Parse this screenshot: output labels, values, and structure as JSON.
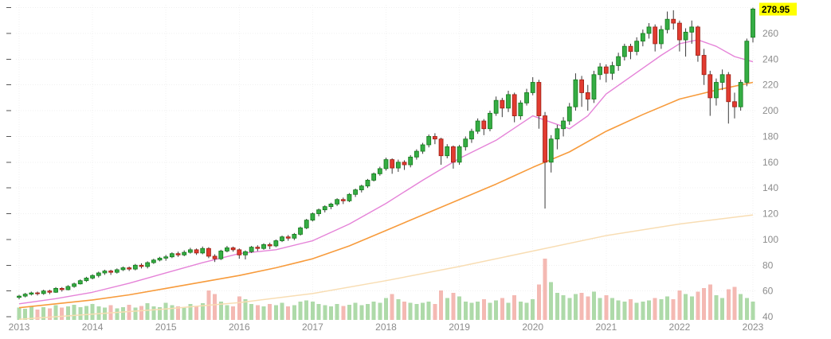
{
  "chart_data": {
    "type": "candlestick",
    "title": "",
    "last_price_label": "278.95",
    "last_price_value": 278.95,
    "x_axis": {
      "labels": [
        "2013",
        "2014",
        "2015",
        "2016",
        "2017",
        "2018",
        "2019",
        "2020",
        "2021",
        "2022",
        "2023"
      ]
    },
    "y_axis": {
      "ticks": [
        40,
        60,
        80,
        100,
        120,
        140,
        160,
        180,
        200,
        220,
        240,
        260
      ],
      "tick_dash_max": 280,
      "range": [
        38,
        285
      ]
    },
    "colors": {
      "up": "#35ad44",
      "up_border": "#147a1b",
      "down": "#e23b30",
      "down_border": "#9c1f14",
      "wick": "#3a3a3a",
      "vol_up": "#a5d6a0",
      "vol_down": "#f3b1ab",
      "grid": "#f0f0f0",
      "grid_v": "#f2f2f2",
      "axis_text": "#8c8c8c",
      "tick_dash": "#555555",
      "tag_bg": "#ffff00",
      "tag_text": "#000000"
    },
    "candles": {
      "interval": "monthly",
      "ohlc": [
        [
          55,
          57,
          53.5,
          56
        ],
        [
          56,
          58.5,
          55,
          57.5
        ],
        [
          57.5,
          59.5,
          56.5,
          58.5
        ],
        [
          58.5,
          59.5,
          56.5,
          58
        ],
        [
          58,
          61,
          57,
          60
        ],
        [
          60,
          61,
          57.5,
          59
        ],
        [
          59,
          63,
          58.5,
          62
        ],
        [
          62,
          63,
          59.5,
          61
        ],
        [
          61,
          64.5,
          60.5,
          63.5
        ],
        [
          63.5,
          66.5,
          62.5,
          65.5
        ],
        [
          65.5,
          69,
          65,
          68
        ],
        [
          68,
          71,
          67,
          70
        ],
        [
          70,
          73,
          69,
          72
        ],
        [
          72,
          75,
          70.5,
          74
        ],
        [
          74,
          76.5,
          72.5,
          75.5
        ],
        [
          75.5,
          76.5,
          72.5,
          74.5
        ],
        [
          74.5,
          77.5,
          73.5,
          76.5
        ],
        [
          76.5,
          79,
          75.5,
          78
        ],
        [
          78,
          79,
          75.5,
          77
        ],
        [
          77,
          81,
          76,
          80
        ],
        [
          80,
          81.5,
          77.5,
          79
        ],
        [
          79,
          83,
          77.5,
          82
        ],
        [
          82,
          85,
          81,
          84
        ],
        [
          84,
          86.5,
          83,
          85.5
        ],
        [
          85.5,
          88,
          83.5,
          86.5
        ],
        [
          86.5,
          90,
          85.5,
          89
        ],
        [
          89,
          90.5,
          86.5,
          88
        ],
        [
          88,
          91.5,
          87,
          90
        ],
        [
          90,
          93.5,
          89,
          92
        ],
        [
          92,
          93,
          88,
          89.5
        ],
        [
          89.5,
          94.5,
          88.5,
          93
        ],
        [
          93,
          94,
          85.5,
          87
        ],
        [
          87,
          88.5,
          82.5,
          85
        ],
        [
          85,
          92,
          84,
          91
        ],
        [
          91,
          95,
          90,
          93.5
        ],
        [
          93.5,
          94.5,
          90.5,
          92
        ],
        [
          92,
          93,
          85,
          88
        ],
        [
          88,
          91.5,
          84.5,
          90.5
        ],
        [
          90.5,
          95,
          89.5,
          94
        ],
        [
          94,
          95.5,
          91,
          93
        ],
        [
          93,
          97,
          92,
          96
        ],
        [
          96,
          97.5,
          92.5,
          95
        ],
        [
          95,
          100,
          94,
          99
        ],
        [
          99,
          103,
          98,
          102
        ],
        [
          102,
          103.5,
          99,
          101
        ],
        [
          101,
          105,
          99.5,
          104
        ],
        [
          104,
          110,
          103,
          109
        ],
        [
          109,
          116,
          108,
          115
        ],
        [
          115,
          121,
          114,
          120
        ],
        [
          120,
          124,
          118,
          123
        ],
        [
          123,
          126.5,
          121,
          125.5
        ],
        [
          125.5,
          128.5,
          123.5,
          127.5
        ],
        [
          127.5,
          132,
          126,
          131
        ],
        [
          131,
          132.5,
          127.5,
          130
        ],
        [
          130,
          136,
          129,
          135
        ],
        [
          135,
          139.5,
          133,
          138.5
        ],
        [
          138.5,
          142.5,
          136.5,
          141.5
        ],
        [
          141.5,
          147,
          140,
          146
        ],
        [
          146,
          152,
          145,
          151
        ],
        [
          151,
          156.5,
          149.5,
          155
        ],
        [
          155,
          163.5,
          153.5,
          162
        ],
        [
          162,
          163,
          151,
          155.5
        ],
        [
          155.5,
          162,
          152.5,
          160
        ],
        [
          160,
          161.5,
          154,
          158
        ],
        [
          158,
          165.5,
          156,
          164
        ],
        [
          164,
          170,
          162,
          168.5
        ],
        [
          168.5,
          175,
          166.5,
          173.5
        ],
        [
          173.5,
          181.5,
          171.5,
          180
        ],
        [
          180,
          182.5,
          174,
          178
        ],
        [
          178,
          179,
          158,
          165
        ],
        [
          165,
          174,
          163,
          172
        ],
        [
          172,
          173,
          155,
          160
        ],
        [
          160,
          173.5,
          158,
          172
        ],
        [
          172,
          180,
          169,
          178
        ],
        [
          178,
          186,
          175,
          184
        ],
        [
          184,
          194,
          182,
          192
        ],
        [
          192,
          193.5,
          181,
          186
        ],
        [
          186,
          200,
          184,
          198
        ],
        [
          198,
          211,
          196,
          208
        ],
        [
          208,
          210,
          195,
          202
        ],
        [
          202,
          215.5,
          199,
          212.5
        ],
        [
          212.5,
          214,
          191,
          196
        ],
        [
          196,
          208,
          193,
          206
        ],
        [
          206,
          217,
          204,
          214
        ],
        [
          214,
          226,
          212,
          222
        ],
        [
          222,
          224,
          186,
          196
        ],
        [
          196,
          199,
          124,
          160
        ],
        [
          160,
          181,
          152,
          178
        ],
        [
          178,
          189,
          170,
          186
        ],
        [
          186,
          195,
          180,
          192
        ],
        [
          192,
          206,
          189,
          203
        ],
        [
          203,
          229,
          200,
          224
        ],
        [
          224,
          227,
          203,
          214
        ],
        [
          214,
          220,
          200,
          209
        ],
        [
          209,
          231,
          206,
          228
        ],
        [
          228,
          237,
          224,
          234
        ],
        [
          234,
          236,
          222,
          229
        ],
        [
          229,
          238,
          224,
          235
        ],
        [
          235,
          245,
          231,
          242
        ],
        [
          242,
          252,
          239,
          250
        ],
        [
          250,
          252,
          240,
          246
        ],
        [
          246,
          257,
          243,
          254
        ],
        [
          254,
          263,
          250,
          260
        ],
        [
          260,
          268,
          256,
          265
        ],
        [
          265,
          267,
          246,
          252
        ],
        [
          252,
          266,
          248,
          263
        ],
        [
          263,
          277,
          260,
          271
        ],
        [
          271,
          278,
          263,
          268
        ],
        [
          268,
          270,
          246,
          255
        ],
        [
          255,
          264,
          242,
          261
        ],
        [
          261,
          270,
          252,
          265
        ],
        [
          265,
          266,
          238,
          243
        ],
        [
          243,
          248,
          220,
          228
        ],
        [
          228,
          231,
          196,
          210
        ],
        [
          210,
          225,
          204,
          222
        ],
        [
          222,
          232,
          216,
          228
        ],
        [
          228,
          230,
          190,
          207
        ],
        [
          207,
          214,
          194,
          203
        ],
        [
          203,
          224,
          200,
          222
        ],
        [
          222,
          256,
          219,
          254
        ],
        [
          257,
          280,
          253,
          278.95
        ]
      ]
    },
    "moving_averages": [
      {
        "name": "ma-long",
        "color": "#f8ddb3",
        "width": 1.5,
        "points": [
          [
            0,
            38
          ],
          [
            12,
            42
          ],
          [
            24,
            46
          ],
          [
            36,
            51
          ],
          [
            48,
            58
          ],
          [
            60,
            68
          ],
          [
            72,
            79
          ],
          [
            84,
            91
          ],
          [
            96,
            103
          ],
          [
            108,
            112
          ],
          [
            120,
            119
          ]
        ]
      },
      {
        "name": "ma-mid",
        "color": "#f79b3c",
        "width": 1.6,
        "points": [
          [
            0,
            47
          ],
          [
            6,
            50
          ],
          [
            12,
            53
          ],
          [
            18,
            57
          ],
          [
            24,
            62
          ],
          [
            30,
            67
          ],
          [
            36,
            72
          ],
          [
            42,
            78
          ],
          [
            48,
            85
          ],
          [
            54,
            95
          ],
          [
            60,
            107
          ],
          [
            66,
            119
          ],
          [
            72,
            131
          ],
          [
            78,
            143
          ],
          [
            84,
            156
          ],
          [
            90,
            168
          ],
          [
            96,
            184
          ],
          [
            102,
            197
          ],
          [
            108,
            209
          ],
          [
            114,
            216
          ],
          [
            120,
            222
          ]
        ]
      },
      {
        "name": "ma-fast",
        "color": "#e583d8",
        "width": 1.4,
        "points": [
          [
            0,
            50
          ],
          [
            6,
            54
          ],
          [
            12,
            59
          ],
          [
            18,
            66
          ],
          [
            24,
            74
          ],
          [
            30,
            82
          ],
          [
            36,
            89
          ],
          [
            42,
            92
          ],
          [
            48,
            99
          ],
          [
            54,
            112
          ],
          [
            60,
            128
          ],
          [
            66,
            146
          ],
          [
            72,
            163
          ],
          [
            78,
            177
          ],
          [
            84,
            196
          ],
          [
            87,
            191
          ],
          [
            90,
            186
          ],
          [
            93,
            196
          ],
          [
            96,
            213
          ],
          [
            102,
            233
          ],
          [
            105,
            243
          ],
          [
            108,
            252
          ],
          [
            111,
            255
          ],
          [
            114,
            250
          ],
          [
            117,
            242
          ],
          [
            120,
            238
          ]
        ]
      }
    ],
    "volume": {
      "values": [
        20,
        18,
        22,
        17,
        21,
        19,
        24,
        20,
        22,
        25,
        21,
        23,
        26,
        22,
        20,
        24,
        19,
        21,
        25,
        20,
        23,
        27,
        22,
        21,
        28,
        24,
        22,
        21,
        26,
        23,
        27,
        48,
        42,
        30,
        24,
        22,
        38,
        34,
        26,
        24,
        22,
        26,
        24,
        28,
        22,
        24,
        30,
        32,
        30,
        26,
        24,
        22,
        26,
        23,
        25,
        28,
        24,
        26,
        30,
        28,
        36,
        42,
        34,
        30,
        28,
        26,
        28,
        30,
        26,
        48,
        36,
        44,
        38,
        30,
        28,
        30,
        34,
        28,
        32,
        36,
        28,
        40,
        30,
        28,
        34,
        58,
        100,
        62,
        44,
        40,
        36,
        42,
        44,
        38,
        46,
        36,
        40,
        36,
        32,
        30,
        34,
        28,
        30,
        32,
        36,
        34,
        38,
        34,
        48,
        42,
        38,
        46,
        52,
        58,
        40,
        36,
        50,
        54,
        42,
        36,
        30
      ]
    }
  }
}
